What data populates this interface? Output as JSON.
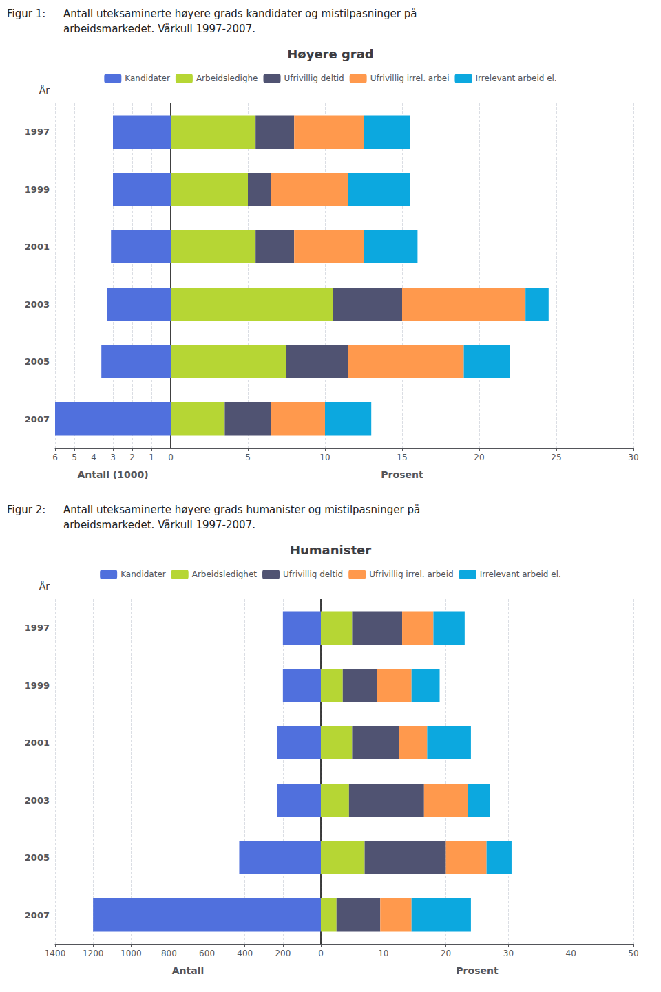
{
  "chart_data": [
    {
      "type": "bar",
      "orientation": "horizontal",
      "stacked": true,
      "grid": true,
      "legend": "top",
      "title": "Høyere grad",
      "annotations": [
        "Figur 1:",
        "Antall uteksaminerte høyere grads kandidater og mistilpasninger på",
        "arbeidsmarkedet. Vårkull 1997-2007."
      ],
      "ylabel": "År",
      "categories": [
        "1997",
        "1999",
        "2001",
        "2003",
        "2005",
        "2007"
      ],
      "xlabel": "Prosent",
      "xlim": [
        0,
        30
      ],
      "xticks": [
        5,
        10,
        15,
        20,
        25,
        30
      ],
      "y2label": "Antall (1000)",
      "y2lim": [
        0,
        6
      ],
      "y2ticks": [
        0,
        1,
        2,
        3,
        4,
        5,
        6
      ],
      "series": [
        {
          "name": "Kandidater",
          "axis": "y2",
          "values": [
            3.0,
            3.0,
            3.1,
            3.3,
            3.6,
            6.0
          ]
        },
        {
          "name": "Arbeidsledighe",
          "values": [
            5.5,
            5.0,
            5.5,
            10.5,
            7.5,
            3.5
          ]
        },
        {
          "name": "Ufrivillig deltid",
          "values": [
            2.5,
            1.5,
            2.5,
            4.5,
            4.0,
            3.0
          ]
        },
        {
          "name": "Ufrivillig irrel. arbei",
          "values": [
            4.5,
            5.0,
            4.5,
            8.0,
            7.5,
            3.5
          ]
        },
        {
          "name": "Irrelevant arbeid el.",
          "values": [
            3.0,
            4.0,
            3.5,
            1.5,
            3.0,
            3.0
          ]
        }
      ]
    },
    {
      "type": "bar",
      "orientation": "horizontal",
      "stacked": true,
      "grid": true,
      "legend": "top",
      "title": "Humanister",
      "annotations": [
        "Figur 2:",
        "Antall uteksaminerte høyere grads humanister og mistilpasninger på",
        "arbeidsmarkedet. Vårkull 1997-2007."
      ],
      "ylabel": "År",
      "categories": [
        "1997",
        "1999",
        "2001",
        "2003",
        "2005",
        "2007"
      ],
      "xlabel": "Prosent",
      "xlim": [
        0,
        50
      ],
      "xticks": [
        10,
        20,
        30,
        40,
        50
      ],
      "y2label": "Antall",
      "y2lim": [
        0,
        1400
      ],
      "y2ticks": [
        0,
        200,
        400,
        600,
        800,
        1000,
        1200,
        1400
      ],
      "series": [
        {
          "name": "Kandidater",
          "axis": "y2",
          "values": [
            200,
            200,
            230,
            230,
            430,
            1200
          ]
        },
        {
          "name": "Arbeidsledighet",
          "values": [
            5.0,
            3.5,
            5.0,
            4.5,
            7.0,
            2.5
          ]
        },
        {
          "name": "Ufrivillig deltid",
          "values": [
            8.0,
            5.5,
            7.5,
            12.0,
            13.0,
            7.0
          ]
        },
        {
          "name": "Ufrivillig irrel. arbeid",
          "values": [
            5.0,
            5.5,
            4.5,
            7.0,
            6.5,
            5.0
          ]
        },
        {
          "name": "Irrelevant arbeid el.",
          "values": [
            5.0,
            4.5,
            7.0,
            3.5,
            4.0,
            9.5
          ]
        }
      ]
    }
  ]
}
